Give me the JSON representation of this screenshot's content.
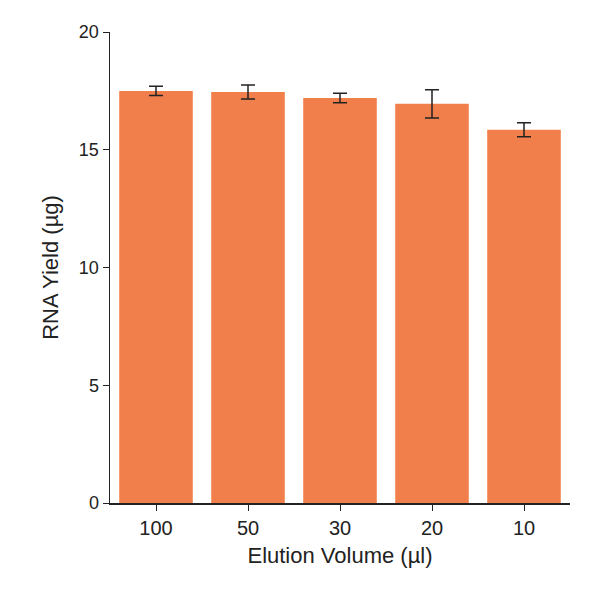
{
  "chart_data": {
    "type": "bar",
    "x_label": "Elution Volume (µl)",
    "y_label": "RNA Yield (µg)",
    "categories": [
      "100",
      "50",
      "30",
      "20",
      "10"
    ],
    "values": [
      17.5,
      17.45,
      17.2,
      16.95,
      15.85
    ],
    "errors": [
      0.2,
      0.3,
      0.2,
      0.6,
      0.3
    ],
    "color": "#f07f4c",
    "ylim": [
      0,
      20
    ],
    "yticks": [
      0,
      5,
      10,
      15,
      20
    ],
    "grid": false
  }
}
